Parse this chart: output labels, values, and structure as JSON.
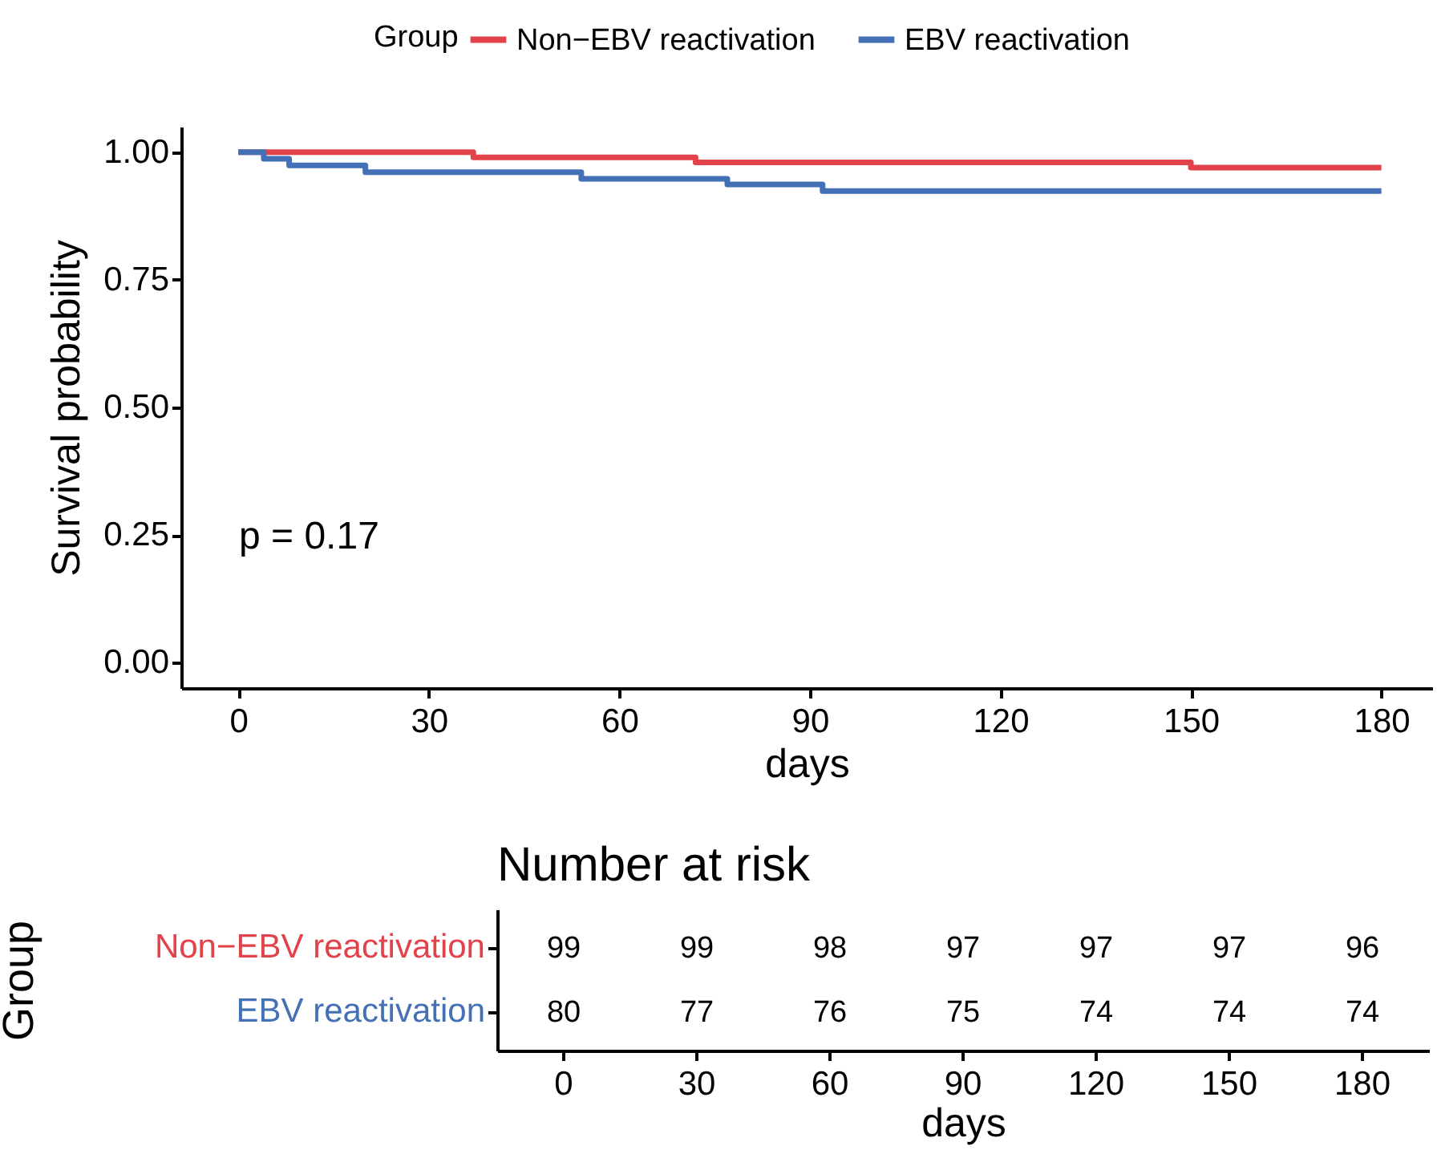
{
  "chart_data": [
    {
      "type": "step",
      "xlabel": "days",
      "ylabel": "Survival probability",
      "legend_title": "Group",
      "legend": "top",
      "grid": false,
      "xlim": [
        -9,
        188
      ],
      "xticks": [
        0,
        30,
        60,
        90,
        120,
        150,
        180
      ],
      "ylim": [
        -0.05,
        1.05
      ],
      "yticks": [
        {
          "value": 0,
          "label": "0.00"
        },
        {
          "value": 0.25,
          "label": "0.25"
        },
        {
          "value": 0.5,
          "label": "0.50"
        },
        {
          "value": 0.75,
          "label": "0.75"
        },
        {
          "value": 1,
          "label": "1.00"
        }
      ],
      "annotations": [
        "p = 0.17"
      ],
      "series": [
        {
          "name": "Non−EBV reactivation",
          "color": "#e2434b",
          "x": [
            0,
            37,
            72,
            150,
            180
          ],
          "values": [
            1.0,
            0.99,
            0.98,
            0.97,
            0.97
          ]
        },
        {
          "name": "EBV reactivation",
          "color": "#4470b5",
          "x": [
            0,
            4,
            8,
            20,
            54,
            77,
            92,
            180
          ],
          "values": [
            1.0,
            0.987,
            0.974,
            0.961,
            0.948,
            0.937,
            0.924,
            0.924
          ]
        }
      ]
    },
    {
      "type": "heatmap",
      "title": "Number at risk",
      "xlabel": "days",
      "ylabel": "Group",
      "data_labels": true,
      "categories": [
        "0",
        "30",
        "60",
        "90",
        "120",
        "150",
        "180"
      ],
      "y_categories": [
        "Non−EBV reactivation",
        "EBV reactivation"
      ],
      "cells": [
        [
          99,
          99,
          98,
          97,
          97,
          97,
          96
        ],
        [
          80,
          77,
          76,
          75,
          74,
          74,
          74
        ]
      ]
    }
  ]
}
